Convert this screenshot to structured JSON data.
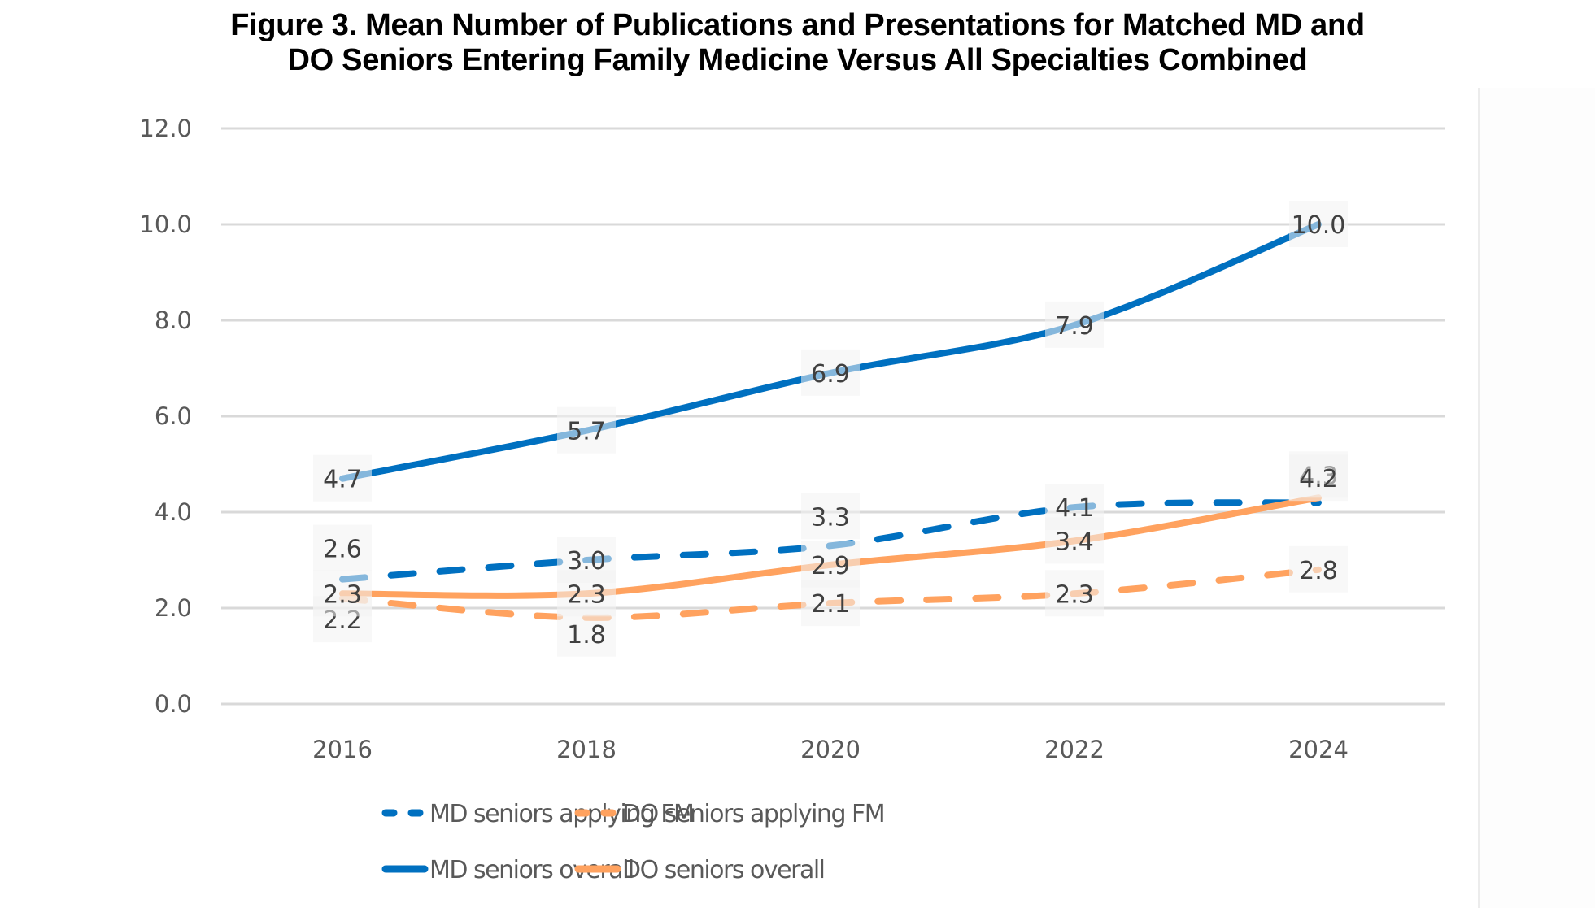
{
  "chart_data": {
    "type": "line",
    "title": "Figure 3. Mean Number of Publications and Presentations for Matched MD and DO Seniors Entering Family Medicine Versus All Specialties Combined",
    "title_lines": [
      "Figure 3. Mean Number of Publications and Presentations for Matched MD and",
      "DO Seniors Entering Family Medicine Versus All Specialties Combined"
    ],
    "xlabel": "",
    "ylabel": "",
    "categories": [
      "2016",
      "2018",
      "2020",
      "2022",
      "2024"
    ],
    "ylim": [
      0,
      12
    ],
    "yticks": [
      0,
      2,
      4,
      6,
      8,
      10,
      12
    ],
    "ytick_labels": [
      "0.0",
      "2.0",
      "4.0",
      "6.0",
      "8.0",
      "10.0",
      "12.0"
    ],
    "grid": true,
    "legend_position": "bottom",
    "series": [
      {
        "name": "MD seniors applying FM",
        "values": [
          2.6,
          3.0,
          3.3,
          4.1,
          4.2
        ],
        "color": "#0070c0",
        "style": "dashed"
      },
      {
        "name": "DO seniors applying FM",
        "values": [
          2.2,
          1.8,
          2.1,
          2.3,
          2.8
        ],
        "color": "#ffa25f",
        "style": "dashed"
      },
      {
        "name": "MD seniors overall",
        "values": [
          4.7,
          5.7,
          6.9,
          7.9,
          10.0
        ],
        "color": "#0070c0",
        "style": "solid"
      },
      {
        "name": "DO seniors overall",
        "values": [
          2.3,
          2.3,
          2.9,
          3.4,
          4.3
        ],
        "color": "#ffa25f",
        "style": "solid"
      }
    ]
  }
}
